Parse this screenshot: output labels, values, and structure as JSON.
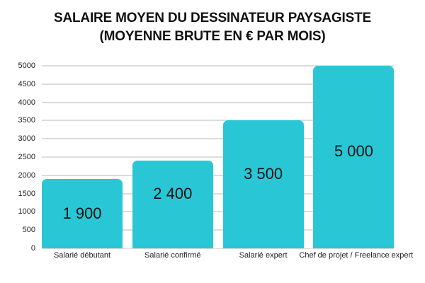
{
  "title_lines": [
    "SALAIRE MOYEN DU DESSINATEUR PAYSAGISTE",
    "(MOYENNE BRUTE EN € PAR MOIS)"
  ],
  "colors": {
    "bar": "#29c7d6",
    "grid": "#dcdcdc",
    "text": "#111111"
  },
  "chart_data": {
    "type": "bar",
    "title": "SALAIRE MOYEN DU DESSINATEUR PAYSAGISTE (MOYENNE BRUTE EN € PAR MOIS)",
    "categories": [
      "Salarié débutant",
      "Salarié confirmé",
      "Salarié expert",
      "Chef de projet / Freelance expert"
    ],
    "values": [
      1900,
      2400,
      3500,
      5000
    ],
    "data_labels": [
      "1 900",
      "2 400",
      "3 500",
      "5 000"
    ],
    "xlabel": "",
    "ylabel": "",
    "ylim": [
      0,
      5000
    ],
    "yticks": [
      "0",
      "500",
      "1000",
      "1500",
      "2000",
      "2500",
      "3000",
      "3500",
      "4000",
      "4500",
      "5000"
    ],
    "grid": true,
    "legend": false
  }
}
